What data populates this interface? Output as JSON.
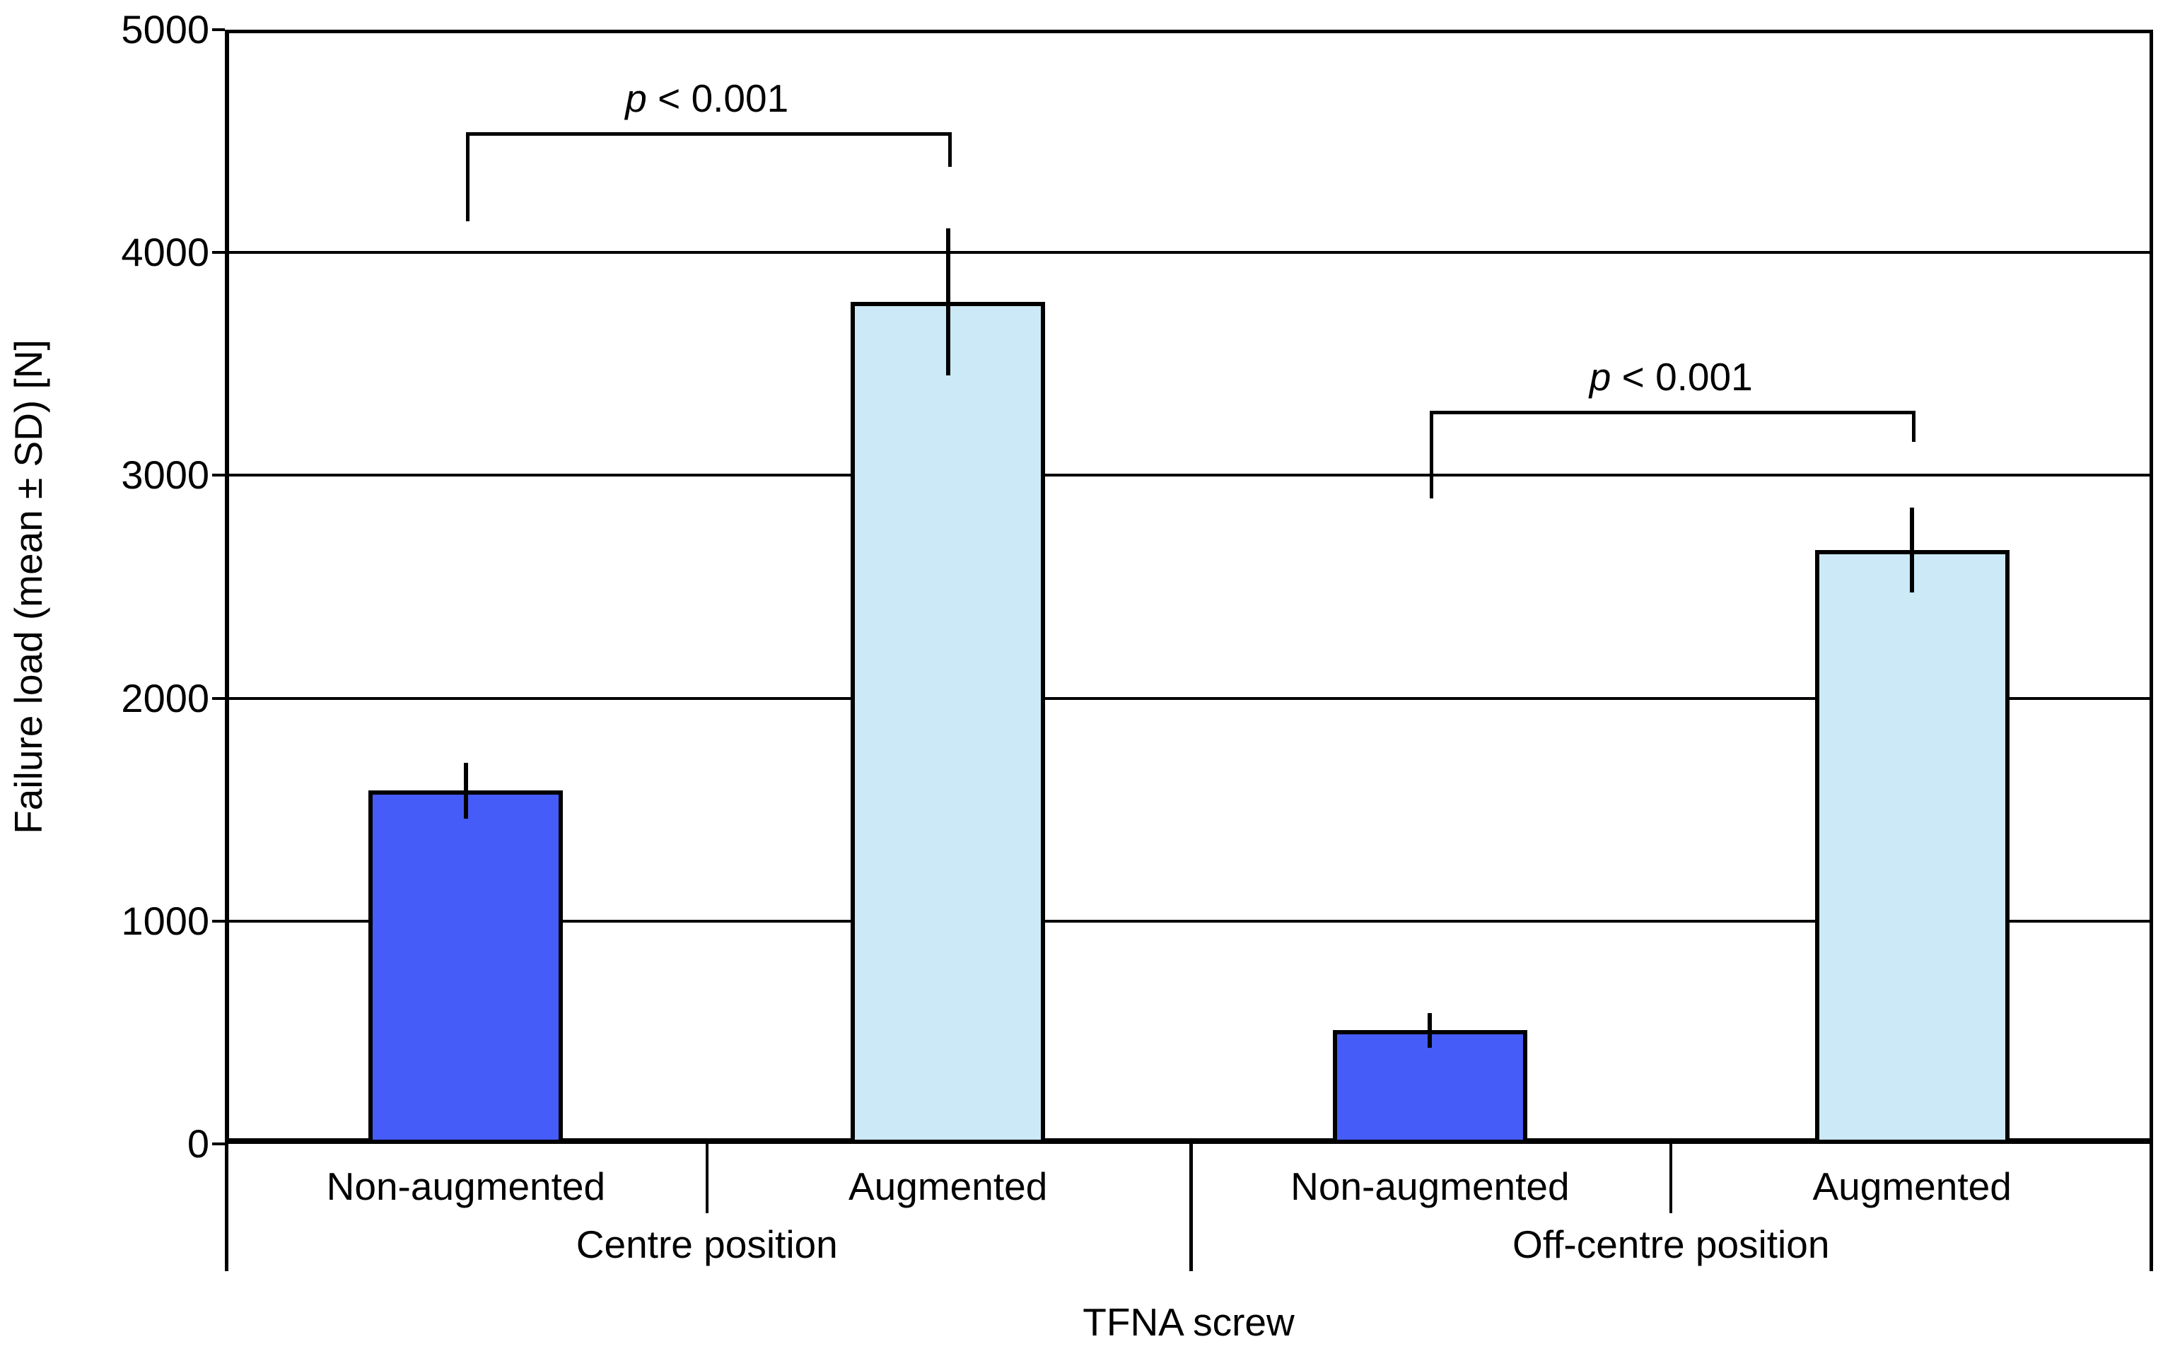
{
  "chart_data": {
    "type": "bar",
    "title": "",
    "ylabel": "Failure load (mean ± SD) [N]",
    "xlabel": "TFNA screw",
    "ylim": [
      0,
      5000
    ],
    "yticks": [
      0,
      1000,
      2000,
      3000,
      4000,
      5000
    ],
    "grid": "horizontal gridlines at each 1000 N, plot boxed on all four sides",
    "legend_position": "none",
    "error_bar_style": "plain vertical line, ± SD, no caps",
    "series_colors": {
      "Non-augmented": "#455CF8",
      "Augmented": "#CBE9F7"
    },
    "axis_color": "#000000",
    "background_color": "#FFFFFF",
    "groups": [
      {
        "label": "Centre position",
        "bars": [
          {
            "label": "Non-augmented",
            "series": "Non-augmented",
            "mean": 1585,
            "sd": 125
          },
          {
            "label": "Augmented",
            "series": "Augmented",
            "mean": 3780,
            "sd": 330
          }
        ]
      },
      {
        "label": "Off-centre position",
        "bars": [
          {
            "label": "Non-augmented",
            "series": "Non-augmented",
            "mean": 510,
            "sd": 78
          },
          {
            "label": "Augmented",
            "series": "Augmented",
            "mean": 2665,
            "sd": 190
          }
        ]
      }
    ],
    "annotations": [
      {
        "type": "significance-bracket",
        "group_index": 0,
        "between": [
          "Non-augmented",
          "Augmented"
        ],
        "label_p": "p",
        "label_rest": " < 0.001",
        "bracket_level_n": 4540,
        "left_leg_bottom_n": 4140,
        "right_leg_bottom_n": 4385
      },
      {
        "type": "significance-bracket",
        "group_index": 1,
        "between": [
          "Non-augmented",
          "Augmented"
        ],
        "label_p": "p",
        "label_rest": " < 0.001",
        "bracket_level_n": 3290,
        "left_leg_bottom_n": 2895,
        "right_leg_bottom_n": 3150
      }
    ]
  }
}
